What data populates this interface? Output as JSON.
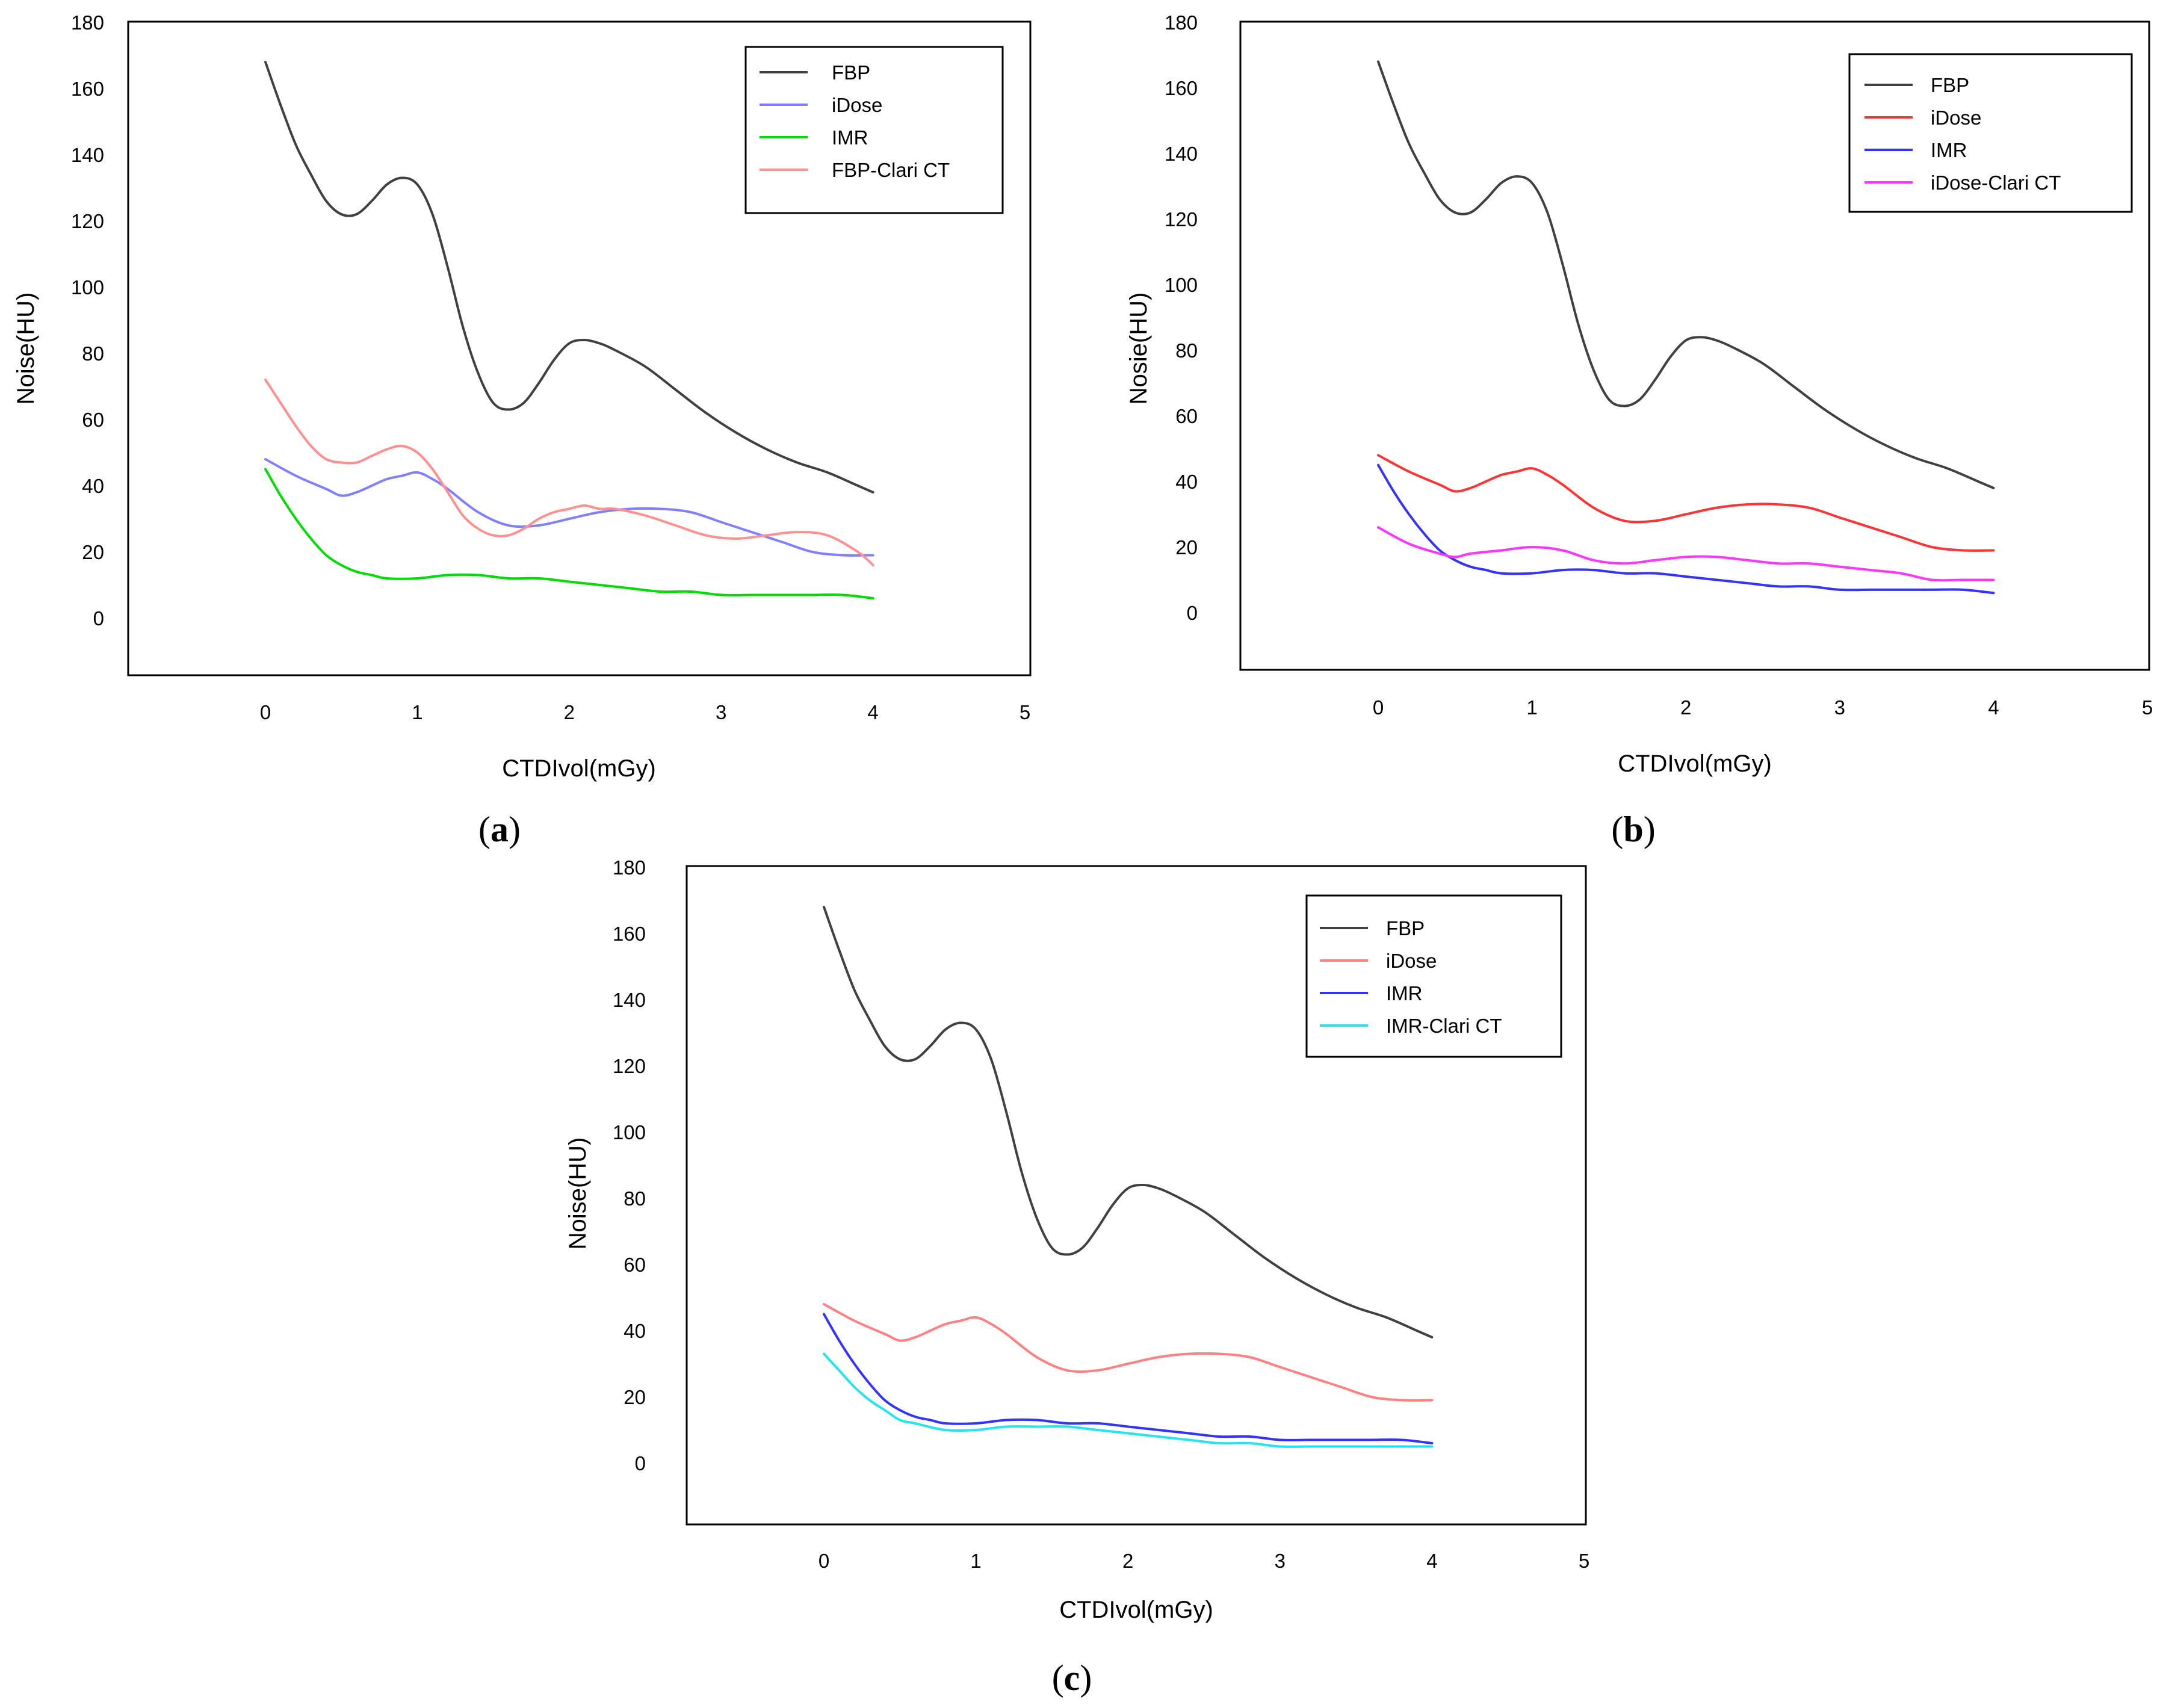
{
  "chart_data": [
    {
      "type": "line",
      "panel": "(a)",
      "caption": {
        "open": "(",
        "letter": "a",
        "close": ")"
      },
      "xlabel": "CTDIvol(mGy)",
      "ylabel": "Noise(HU)",
      "xlim": [
        -0.9,
        5
      ],
      "ylim": [
        -18,
        180
      ],
      "xticks": [
        "0",
        "1",
        "2",
        "3",
        "4",
        "5"
      ],
      "yticks": [
        "0",
        "20",
        "40",
        "60",
        "80",
        "100",
        "120",
        "140",
        "160",
        "180"
      ],
      "legend_position": "top-right",
      "series": [
        {
          "name": "FBP",
          "color": "#404040",
          "x": [
            0,
            0.1,
            0.2,
            0.3,
            0.4,
            0.5,
            0.6,
            0.7,
            0.8,
            0.9,
            1.0,
            1.1,
            1.2,
            1.3,
            1.4,
            1.5,
            1.6,
            1.7,
            1.8,
            1.9,
            2.0,
            2.1,
            2.2,
            2.3,
            2.5,
            2.7,
            2.9,
            3.1,
            3.3,
            3.5,
            3.7,
            3.9,
            4.0
          ],
          "values": [
            168,
            155,
            143,
            134,
            126,
            122,
            122,
            126,
            131,
            133,
            131,
            122,
            106,
            88,
            74,
            65,
            63,
            65,
            71,
            78,
            83,
            84,
            83,
            81,
            76,
            69,
            62,
            56,
            51,
            47,
            44,
            40,
            38
          ]
        },
        {
          "name": "iDose",
          "color": "#8080ff",
          "x": [
            0,
            0.2,
            0.4,
            0.5,
            0.6,
            0.7,
            0.8,
            0.9,
            1.0,
            1.1,
            1.2,
            1.4,
            1.6,
            1.8,
            2.0,
            2.2,
            2.4,
            2.6,
            2.8,
            3.0,
            3.2,
            3.4,
            3.6,
            3.8,
            4.0
          ],
          "values": [
            48,
            43,
            39,
            37,
            38,
            40,
            42,
            43,
            44,
            42,
            39,
            32,
            28,
            28,
            30,
            32,
            33,
            33,
            32,
            29,
            26,
            23,
            20,
            19,
            19
          ]
        },
        {
          "name": "IMR",
          "color": "#00dd00",
          "x": [
            0,
            0.1,
            0.2,
            0.3,
            0.4,
            0.5,
            0.6,
            0.7,
            0.8,
            1.0,
            1.2,
            1.4,
            1.6,
            1.8,
            2.0,
            2.2,
            2.4,
            2.6,
            2.8,
            3.0,
            3.2,
            3.4,
            3.6,
            3.8,
            4.0
          ],
          "values": [
            45,
            37,
            30,
            24,
            19,
            16,
            14,
            13,
            12,
            12,
            13,
            13,
            12,
            12,
            11,
            10,
            9,
            8,
            8,
            7,
            7,
            7,
            7,
            7,
            6
          ]
        },
        {
          "name": "FBP-Clari CT",
          "color": "#ff9090",
          "x": [
            0,
            0.1,
            0.2,
            0.3,
            0.4,
            0.5,
            0.6,
            0.7,
            0.8,
            0.9,
            1.0,
            1.1,
            1.2,
            1.3,
            1.4,
            1.5,
            1.6,
            1.7,
            1.8,
            1.9,
            2.0,
            2.1,
            2.2,
            2.3,
            2.5,
            2.7,
            2.9,
            3.1,
            3.3,
            3.5,
            3.7,
            3.9,
            4.0
          ],
          "values": [
            72,
            65,
            58,
            52,
            48,
            47,
            47,
            49,
            51,
            52,
            50,
            45,
            38,
            31,
            27,
            25,
            25,
            27,
            30,
            32,
            33,
            34,
            33,
            33,
            31,
            28,
            25,
            24,
            25,
            26,
            25,
            20,
            16
          ]
        }
      ]
    },
    {
      "type": "line",
      "panel": "(b)",
      "caption": {
        "open": "(",
        "letter": "b",
        "close": ")"
      },
      "xlabel": "CTDIvol(mGy)",
      "ylabel": "Nosie(HU)",
      "xlim": [
        -0.9,
        5
      ],
      "ylim": [
        -18,
        180
      ],
      "xticks": [
        "0",
        "1",
        "2",
        "3",
        "4",
        "5"
      ],
      "yticks": [
        "0",
        "20",
        "40",
        "60",
        "80",
        "100",
        "120",
        "140",
        "160",
        "180"
      ],
      "legend_position": "top-right",
      "series": [
        {
          "name": "FBP",
          "color": "#404040",
          "x": [
            0,
            0.1,
            0.2,
            0.3,
            0.4,
            0.5,
            0.6,
            0.7,
            0.8,
            0.9,
            1.0,
            1.1,
            1.2,
            1.3,
            1.4,
            1.5,
            1.6,
            1.7,
            1.8,
            1.9,
            2.0,
            2.1,
            2.2,
            2.3,
            2.5,
            2.7,
            2.9,
            3.1,
            3.3,
            3.5,
            3.7,
            3.9,
            4.0
          ],
          "values": [
            168,
            155,
            143,
            134,
            126,
            122,
            122,
            126,
            131,
            133,
            131,
            122,
            106,
            88,
            74,
            65,
            63,
            65,
            71,
            78,
            83,
            84,
            83,
            81,
            76,
            69,
            62,
            56,
            51,
            47,
            44,
            40,
            38
          ]
        },
        {
          "name": "iDose",
          "color": "#ff3333",
          "x": [
            0,
            0.2,
            0.4,
            0.5,
            0.6,
            0.7,
            0.8,
            0.9,
            1.0,
            1.1,
            1.2,
            1.4,
            1.6,
            1.8,
            2.0,
            2.2,
            2.4,
            2.6,
            2.8,
            3.0,
            3.2,
            3.4,
            3.6,
            3.8,
            4.0
          ],
          "values": [
            48,
            43,
            39,
            37,
            38,
            40,
            42,
            43,
            44,
            42,
            39,
            32,
            28,
            28,
            30,
            32,
            33,
            33,
            32,
            29,
            26,
            23,
            20,
            19,
            19
          ]
        },
        {
          "name": "IMR",
          "color": "#3333ff",
          "x": [
            0,
            0.1,
            0.2,
            0.3,
            0.4,
            0.5,
            0.6,
            0.7,
            0.8,
            1.0,
            1.2,
            1.4,
            1.6,
            1.8,
            2.0,
            2.2,
            2.4,
            2.6,
            2.8,
            3.0,
            3.2,
            3.4,
            3.6,
            3.8,
            4.0
          ],
          "values": [
            45,
            37,
            30,
            24,
            19,
            16,
            14,
            13,
            12,
            12,
            13,
            13,
            12,
            12,
            11,
            10,
            9,
            8,
            8,
            7,
            7,
            7,
            7,
            7,
            6
          ]
        },
        {
          "name": "iDose-Clari CT",
          "color": "#ff33ff",
          "x": [
            0,
            0.2,
            0.4,
            0.5,
            0.6,
            0.8,
            1.0,
            1.2,
            1.4,
            1.6,
            1.8,
            2.0,
            2.2,
            2.4,
            2.6,
            2.8,
            3.0,
            3.2,
            3.4,
            3.6,
            3.8,
            4.0
          ],
          "values": [
            26,
            21,
            18,
            17,
            18,
            19,
            20,
            19,
            16,
            15,
            16,
            17,
            17,
            16,
            15,
            15,
            14,
            13,
            12,
            10,
            10,
            10
          ]
        }
      ]
    },
    {
      "type": "line",
      "panel": "(c)",
      "caption": {
        "open": "(",
        "letter": "c",
        "close": ")"
      },
      "xlabel": "CTDIvol(mGy)",
      "ylabel": "Noise(HU)",
      "xlim": [
        -0.9,
        5
      ],
      "ylim": [
        -18,
        180
      ],
      "xticks": [
        "0",
        "1",
        "2",
        "3",
        "4",
        "5"
      ],
      "yticks": [
        "0",
        "20",
        "40",
        "60",
        "80",
        "100",
        "120",
        "140",
        "160",
        "180"
      ],
      "legend_position": "top-right",
      "series": [
        {
          "name": "FBP",
          "color": "#404040",
          "x": [
            0,
            0.1,
            0.2,
            0.3,
            0.4,
            0.5,
            0.6,
            0.7,
            0.8,
            0.9,
            1.0,
            1.1,
            1.2,
            1.3,
            1.4,
            1.5,
            1.6,
            1.7,
            1.8,
            1.9,
            2.0,
            2.1,
            2.2,
            2.3,
            2.5,
            2.7,
            2.9,
            3.1,
            3.3,
            3.5,
            3.7,
            3.9,
            4.0
          ],
          "values": [
            168,
            155,
            143,
            134,
            126,
            122,
            122,
            126,
            131,
            133,
            131,
            122,
            106,
            88,
            74,
            65,
            63,
            65,
            71,
            78,
            83,
            84,
            83,
            81,
            76,
            69,
            62,
            56,
            51,
            47,
            44,
            40,
            38
          ]
        },
        {
          "name": "iDose",
          "color": "#ff8080",
          "x": [
            0,
            0.2,
            0.4,
            0.5,
            0.6,
            0.7,
            0.8,
            0.9,
            1.0,
            1.1,
            1.2,
            1.4,
            1.6,
            1.8,
            2.0,
            2.2,
            2.4,
            2.6,
            2.8,
            3.0,
            3.2,
            3.4,
            3.6,
            3.8,
            4.0
          ],
          "values": [
            48,
            43,
            39,
            37,
            38,
            40,
            42,
            43,
            44,
            42,
            39,
            32,
            28,
            28,
            30,
            32,
            33,
            33,
            32,
            29,
            26,
            23,
            20,
            19,
            19
          ]
        },
        {
          "name": "IMR",
          "color": "#3333ff",
          "x": [
            0,
            0.1,
            0.2,
            0.3,
            0.4,
            0.5,
            0.6,
            0.7,
            0.8,
            1.0,
            1.2,
            1.4,
            1.6,
            1.8,
            2.0,
            2.2,
            2.4,
            2.6,
            2.8,
            3.0,
            3.2,
            3.4,
            3.6,
            3.8,
            4.0
          ],
          "values": [
            45,
            37,
            30,
            24,
            19,
            16,
            14,
            13,
            12,
            12,
            13,
            13,
            12,
            12,
            11,
            10,
            9,
            8,
            8,
            7,
            7,
            7,
            7,
            7,
            6
          ]
        },
        {
          "name": "IMR-Clari CT",
          "color": "#22e5f0",
          "x": [
            0,
            0.1,
            0.2,
            0.3,
            0.4,
            0.5,
            0.6,
            0.8,
            1.0,
            1.2,
            1.4,
            1.6,
            1.8,
            2.0,
            2.2,
            2.4,
            2.6,
            2.8,
            3.0,
            3.2,
            3.4,
            3.6,
            3.8,
            4.0
          ],
          "values": [
            33,
            28,
            23,
            19,
            16,
            13,
            12,
            10,
            10,
            11,
            11,
            11,
            10,
            9,
            8,
            7,
            6,
            6,
            5,
            5,
            5,
            5,
            5,
            5
          ]
        }
      ]
    }
  ]
}
